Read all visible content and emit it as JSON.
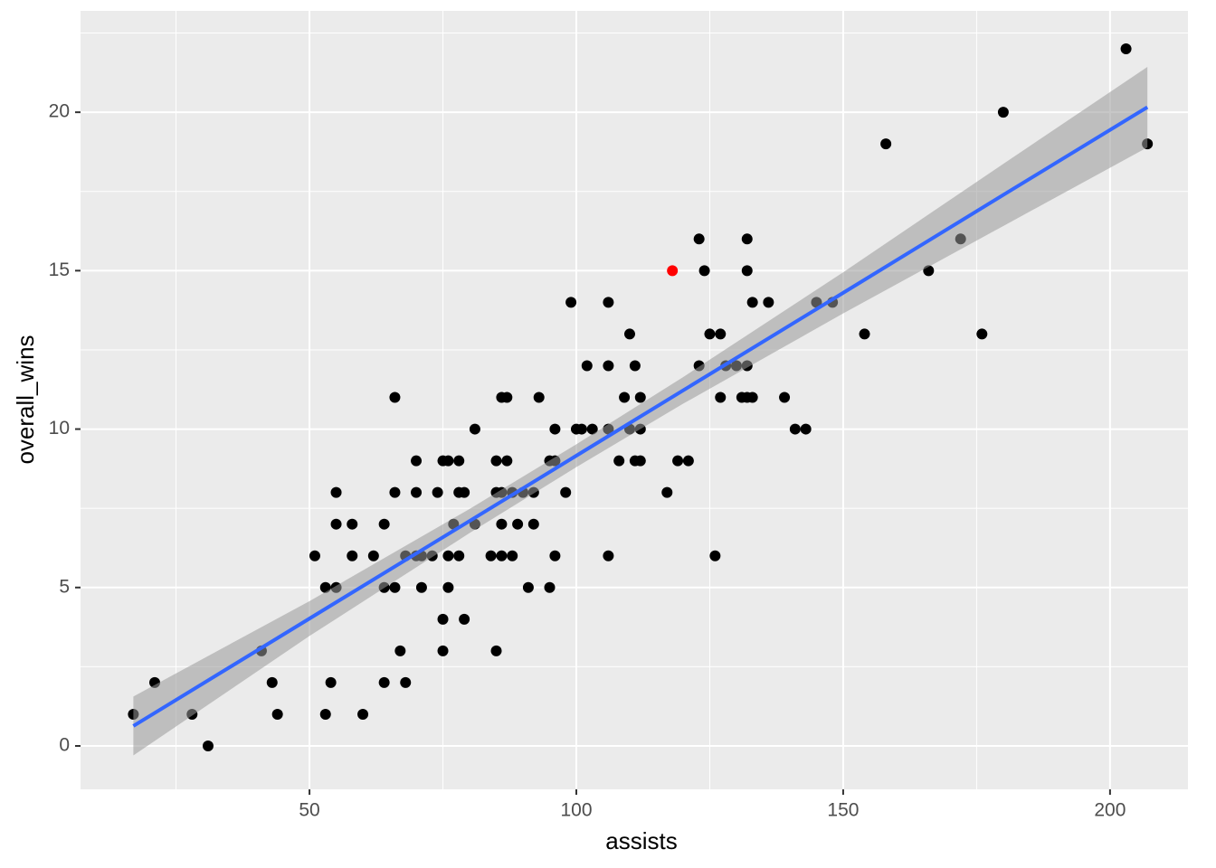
{
  "chart_data": {
    "type": "scatter",
    "x_label": "assists",
    "y_label": "overall_wins",
    "xlim": [
      7.1,
      214.6
    ],
    "ylim": [
      -1.37,
      23.2
    ],
    "xticks": [
      50,
      100,
      150,
      200
    ],
    "yticks": [
      0,
      5,
      10,
      15,
      20
    ],
    "x_minor_ticks": [
      25,
      75,
      125,
      175
    ],
    "y_minor_ticks": [
      2.5,
      7.5,
      12.5,
      17.5,
      22.5
    ],
    "grid": true,
    "points": {
      "color": "#000000",
      "x": [
        17,
        21,
        28,
        31,
        41,
        43,
        44,
        51,
        53,
        53,
        54,
        55,
        55,
        55,
        58,
        58,
        60,
        62,
        64,
        64,
        64,
        66,
        66,
        66,
        67,
        68,
        68,
        70,
        70,
        70,
        71,
        71,
        73,
        74,
        75,
        75,
        75,
        76,
        76,
        76,
        77,
        78,
        78,
        78,
        79,
        79,
        81,
        81,
        84,
        85,
        85,
        85,
        86,
        86,
        86,
        86,
        87,
        87,
        88,
        88,
        89,
        90,
        91,
        92,
        92,
        93,
        95,
        95,
        96,
        96,
        96,
        98,
        99,
        100,
        101,
        102,
        103,
        106,
        106,
        106,
        106,
        108,
        109,
        110,
        110,
        111,
        111,
        112,
        112,
        112,
        117,
        119,
        121,
        123,
        123,
        124,
        125,
        126,
        127,
        127,
        128,
        130,
        131,
        132,
        132,
        132,
        132,
        133,
        133,
        136,
        139,
        141,
        143,
        145,
        148,
        154,
        158,
        166,
        172,
        176,
        180,
        203,
        207
      ],
      "y": [
        1,
        2,
        1,
        0,
        3,
        2,
        1,
        6,
        5,
        1,
        2,
        8,
        7,
        5,
        7,
        6,
        1,
        6,
        7,
        5,
        2,
        8,
        11,
        5,
        3,
        6,
        2,
        9,
        8,
        6,
        5,
        6,
        6,
        8,
        9,
        4,
        3,
        9,
        6,
        5,
        7,
        9,
        8,
        6,
        8,
        4,
        10,
        7,
        6,
        9,
        8,
        3,
        11,
        8,
        7,
        6,
        11,
        9,
        8,
        6,
        7,
        8,
        5,
        8,
        7,
        11,
        9,
        5,
        9,
        10,
        6,
        8,
        14,
        10,
        10,
        12,
        10,
        14,
        12,
        10,
        6,
        9,
        11,
        13,
        10,
        12,
        9,
        11,
        10,
        9,
        8,
        9,
        9,
        16,
        12,
        15,
        13,
        6,
        13,
        11,
        12,
        12,
        11,
        16,
        15,
        12,
        11,
        14,
        11,
        14,
        11,
        10,
        10,
        14,
        14,
        13,
        19,
        15,
        16,
        13,
        20,
        22,
        19
      ]
    },
    "highlight": {
      "color": "#ff0000",
      "x": [
        118
      ],
      "y": [
        15
      ]
    },
    "band": {
      "color": "#999999",
      "x": [
        17,
        50,
        80,
        100,
        120,
        150,
        180,
        207
      ],
      "lower": [
        -0.3,
        3.47,
        6.72,
        8.8,
        10.8,
        13.65,
        16.41,
        18.89
      ],
      "upper": [
        1.56,
        4.57,
        7.48,
        9.52,
        11.64,
        14.95,
        18.37,
        21.43
      ]
    },
    "fit": {
      "color": "#3366ff",
      "x": [
        17,
        50,
        80,
        100,
        120,
        150,
        180,
        207
      ],
      "values": [
        0.63,
        4.02,
        7.1,
        9.16,
        11.22,
        14.3,
        17.39,
        20.16
      ]
    }
  }
}
